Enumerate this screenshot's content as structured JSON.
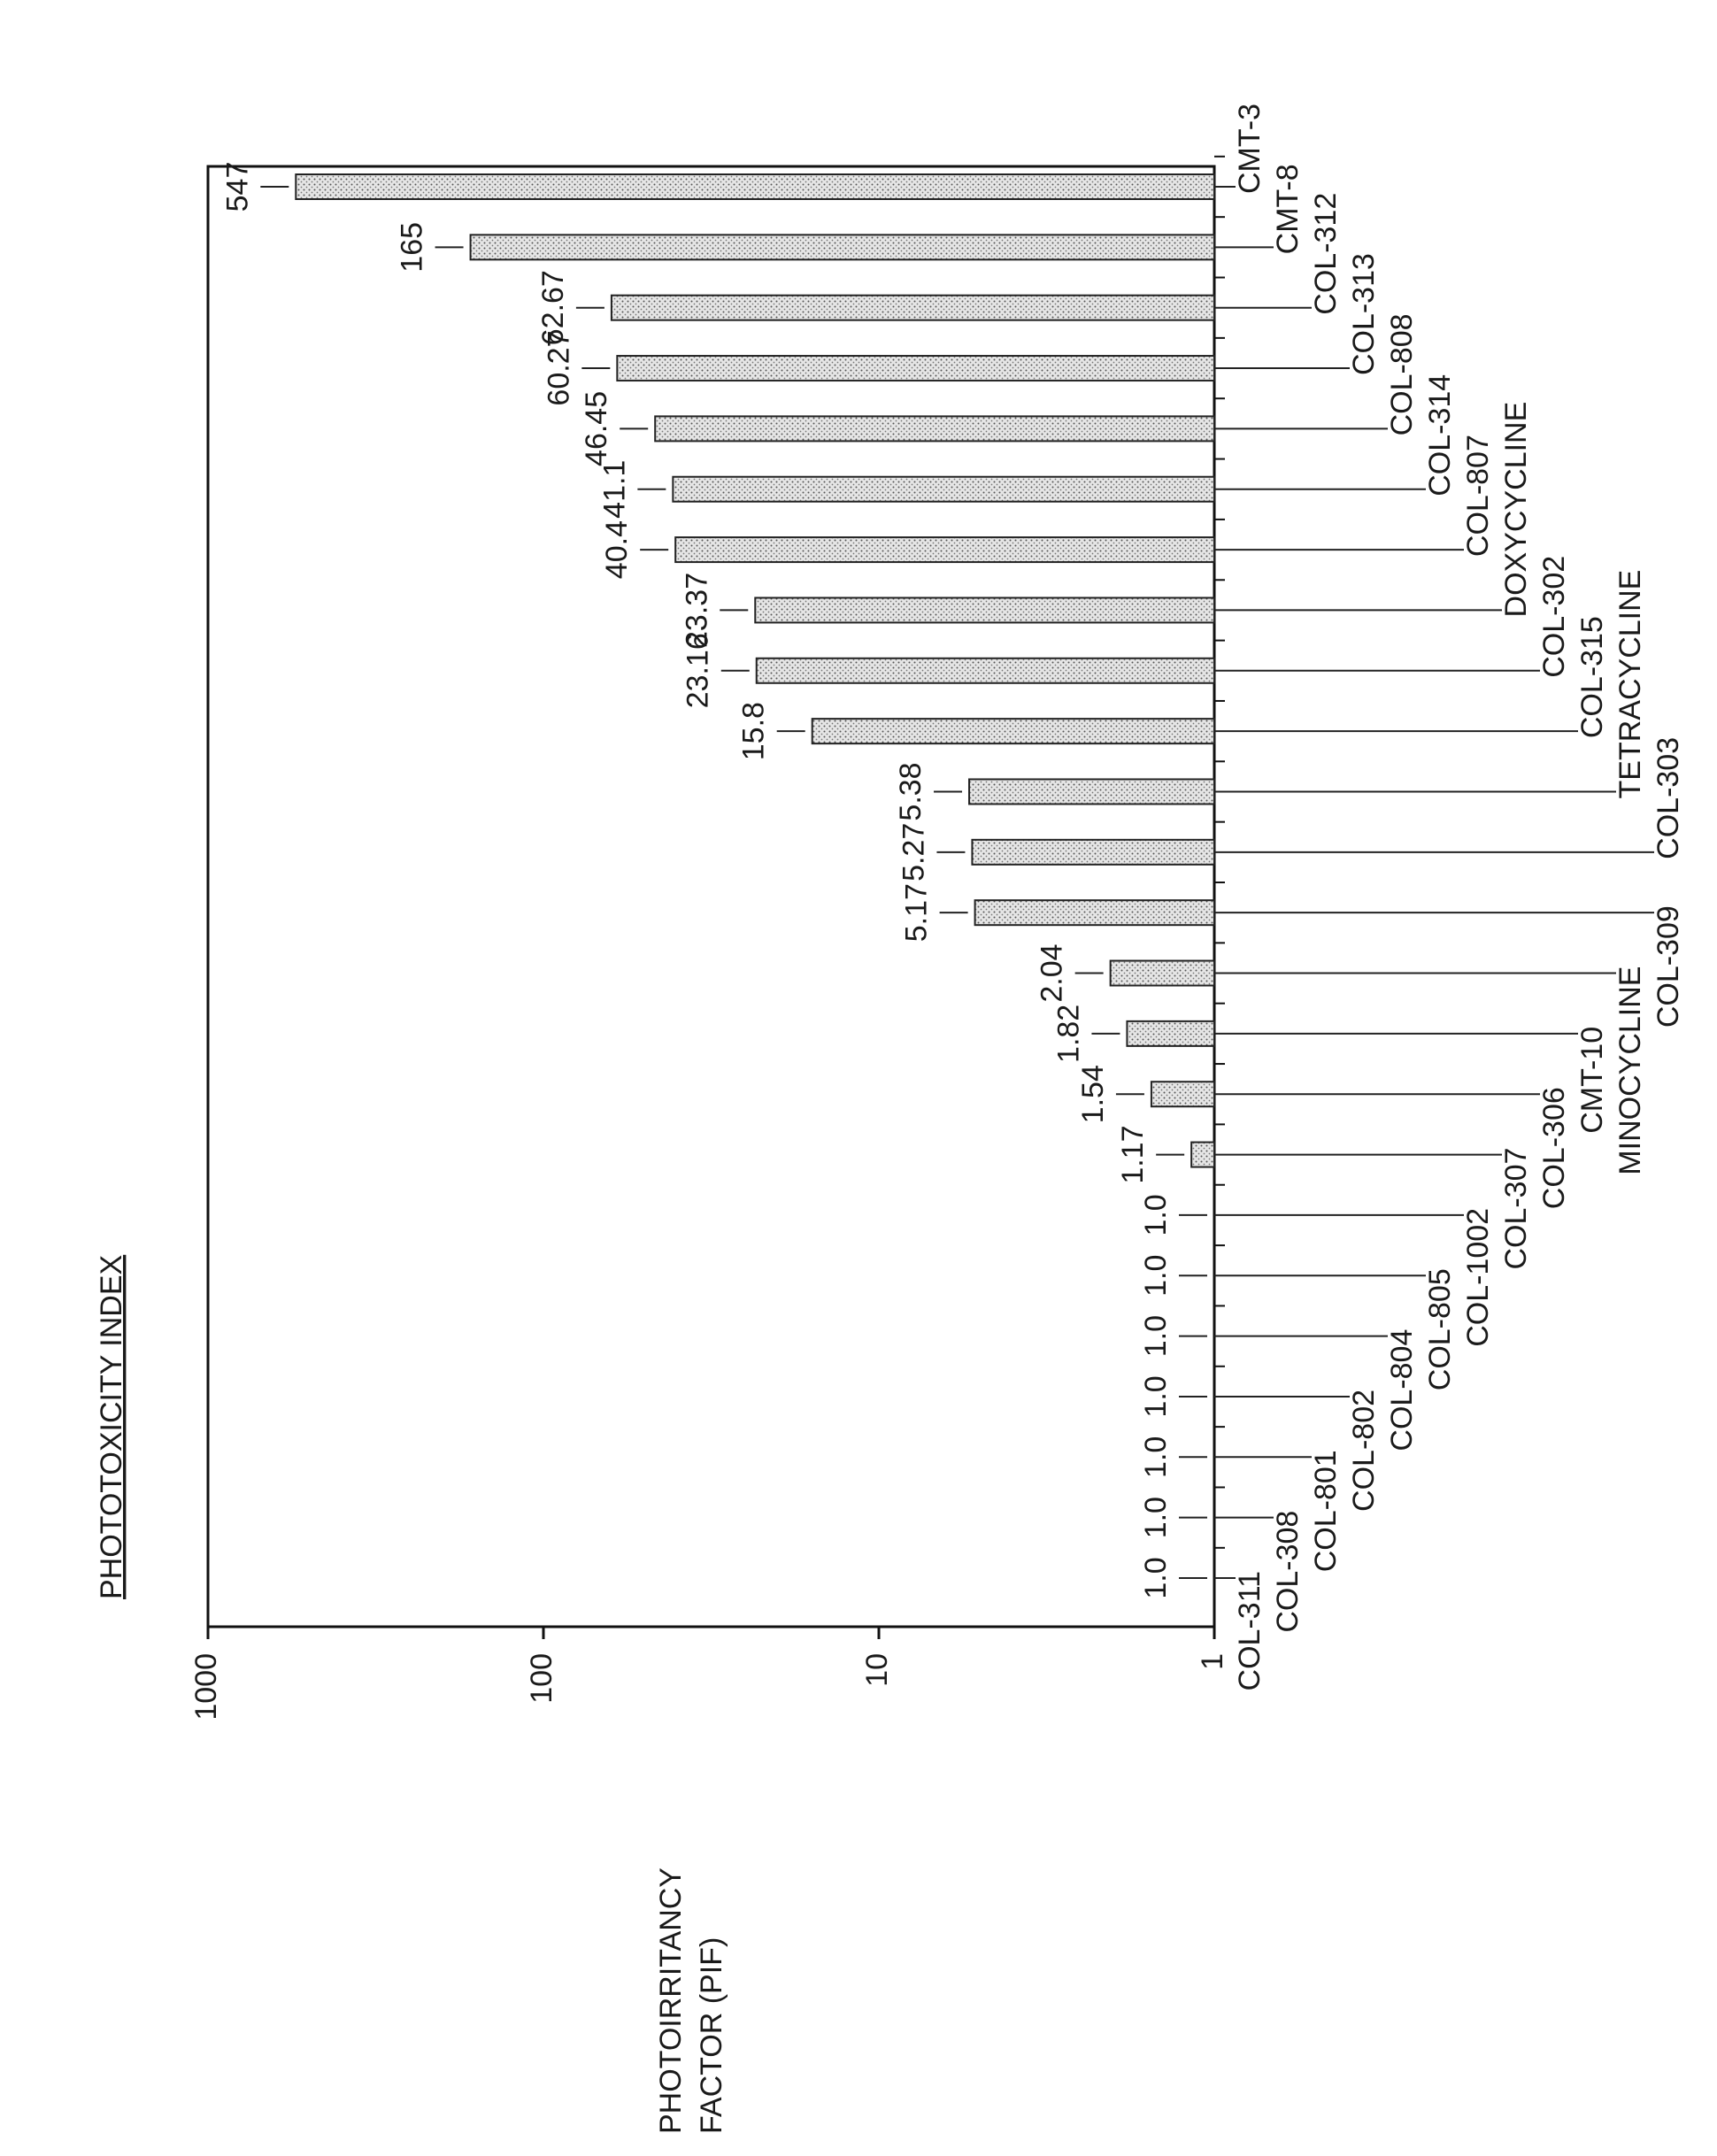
{
  "chart_data": {
    "type": "bar",
    "title": "PHOTOTOXICITY INDEX",
    "y_label": [
      "PHOTOIRRITANCY",
      "FACTOR (PIF)"
    ],
    "categories": [
      "COL-311",
      "COL-308",
      "COL-801",
      "COL-802",
      "COL-804",
      "COL-805",
      "COL-1002",
      "COL-307",
      "COL-306",
      "CMT-10",
      "MINOCYCLINE",
      "COL-309",
      "COL-303",
      "TETRACYCLINE",
      "COL-315",
      "COL-302",
      "DOXYCYCLINE",
      "COL-807",
      "COL-314",
      "COL-808",
      "COL-313",
      "COL-312",
      "CMT-8",
      "CMT-3"
    ],
    "values": [
      1,
      1,
      1,
      1,
      1,
      1,
      1,
      1.17,
      1.54,
      1.82,
      2.04,
      5.17,
      5.27,
      5.38,
      15.8,
      23.16,
      23.37,
      40.4,
      41.1,
      46.45,
      60.27,
      62.67,
      165,
      547
    ],
    "value_labels": [
      "1.0",
      "1.0",
      "1.0",
      "1.0",
      "1.0",
      "1.0",
      "1.0",
      "1.17",
      "1.54",
      "1.82",
      "2.04",
      "5.17",
      "5.27",
      "5.38",
      "15.8",
      "23.16",
      "23.37",
      "40.4",
      "41.1",
      "46.45",
      "60.27",
      "62.67",
      "165",
      "547"
    ],
    "color": "#c8c8c8",
    "ylim": [
      1,
      1000
    ],
    "yticks": [
      1,
      10,
      100,
      1000
    ],
    "log_scale": true,
    "grid": false
  }
}
